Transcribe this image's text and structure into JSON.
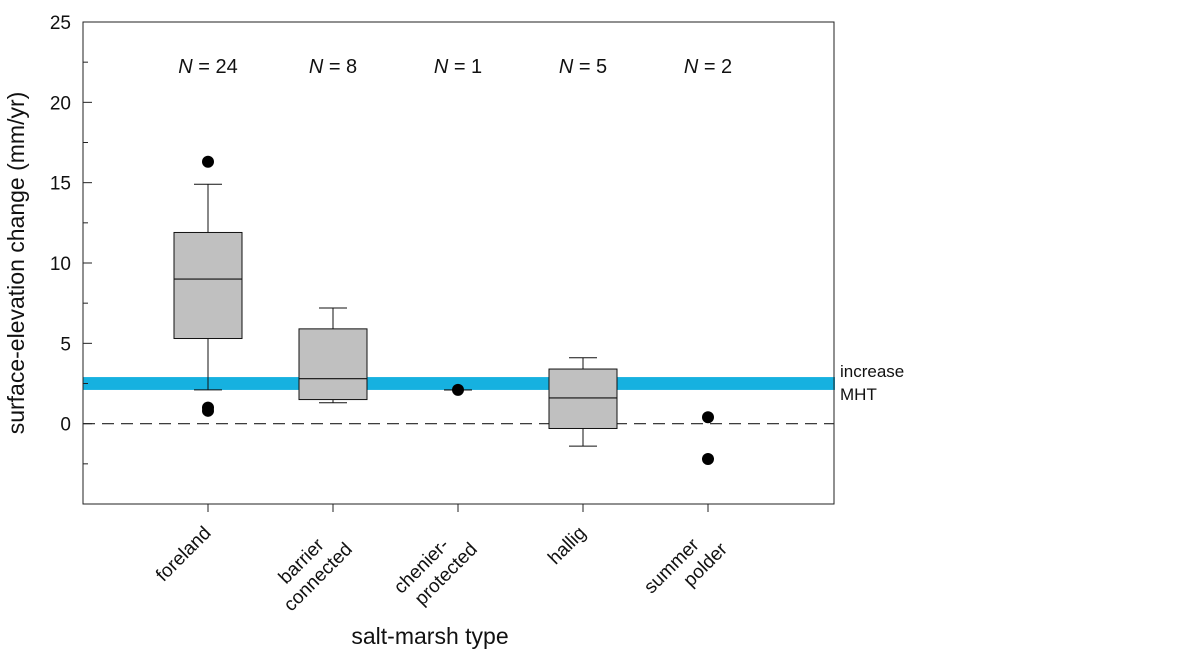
{
  "chart_data": {
    "type": "box",
    "xlabel": "salt-marsh type",
    "ylabel": "surface-elevation change  (mm/yr)",
    "ylim": [
      -5,
      25
    ],
    "yticks": [
      0,
      5,
      10,
      15,
      20,
      25
    ],
    "yminor_ticks": [
      -2.5,
      2.5,
      7.5,
      12.5,
      17.5,
      22.5
    ],
    "n_prefix": "N",
    "groups": [
      {
        "name": "foreland",
        "label_lines": [
          "foreland"
        ],
        "n_label": " = 24",
        "whisker_low": 2.1,
        "q1": 5.3,
        "median": 9.0,
        "q3": 11.9,
        "whisker_high": 14.9,
        "outliers": [
          16.3,
          1.0,
          0.8
        ]
      },
      {
        "name": "barrier connected",
        "label_lines": [
          "barrier",
          "connected"
        ],
        "n_label": " = 8",
        "whisker_low": 1.3,
        "q1": 1.5,
        "median": 2.8,
        "q3": 5.9,
        "whisker_high": 7.2,
        "outliers": []
      },
      {
        "name": "chenier-protected",
        "label_lines": [
          "chenier-",
          "protected"
        ],
        "n_label": " = 1",
        "whisker_low": null,
        "q1": null,
        "median": 2.1,
        "q3": null,
        "whisker_high": null,
        "outliers": [
          2.1
        ]
      },
      {
        "name": "hallig",
        "label_lines": [
          "hallig"
        ],
        "n_label": " = 5",
        "whisker_low": -1.4,
        "q1": -0.3,
        "median": 1.6,
        "q3": 3.4,
        "whisker_high": 4.1,
        "outliers": []
      },
      {
        "name": "summer polder",
        "label_lines": [
          "summer",
          "polder"
        ],
        "n_label": " = 2",
        "whisker_low": null,
        "q1": null,
        "median": null,
        "q3": null,
        "whisker_high": null,
        "outliers": [
          0.4,
          -2.2
        ]
      }
    ],
    "reference_band": {
      "low": 2.1,
      "high": 2.9,
      "color": "#16b1e0",
      "label_lines": [
        "increase",
        "MHT"
      ]
    },
    "zero_line": {
      "value": 0,
      "style": "dashed"
    },
    "box_color": "#c0c0c0"
  }
}
